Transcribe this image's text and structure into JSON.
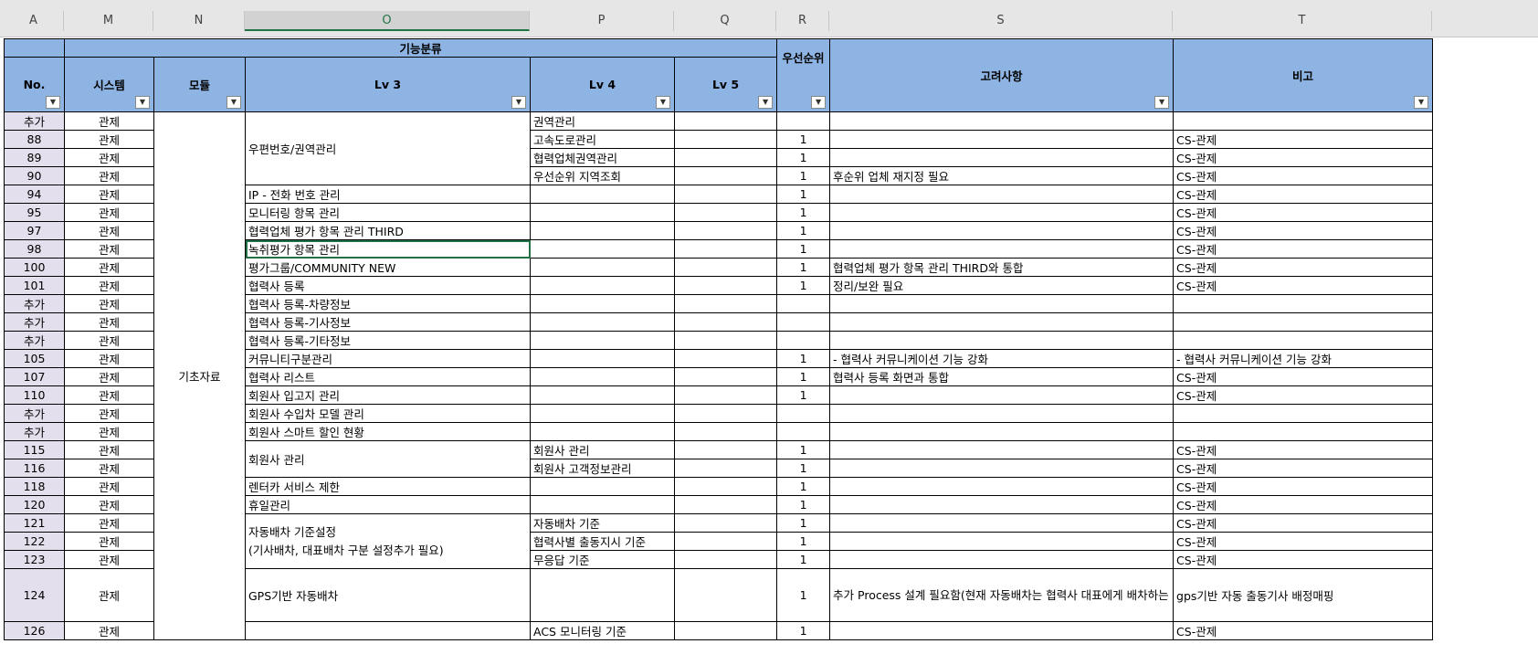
{
  "column_letters": [
    "A",
    "M",
    "N",
    "O",
    "P",
    "Q",
    "R",
    "S",
    "T"
  ],
  "header": {
    "group_label": "기능분류",
    "no": "No.",
    "system": "시스템",
    "module": "모듈",
    "lv3": "Lv 3",
    "lv4": "Lv 4",
    "lv5": "Lv 5",
    "priority": "우선순위",
    "considerations": "고려사항",
    "remarks": "비고"
  },
  "module_name": "기초자료",
  "rows": [
    {
      "no": "추가",
      "sys": "관제",
      "lv4": "권역관리",
      "pr": "",
      "note": "",
      "rem": ""
    },
    {
      "no": "88",
      "sys": "관제",
      "lv4": "고속도로관리",
      "pr": "1",
      "note": "",
      "rem": "CS-관제"
    },
    {
      "no": "89",
      "sys": "관제",
      "lv4": "협력업체권역관리",
      "pr": "1",
      "note": "",
      "rem": "CS-관제"
    },
    {
      "no": "90",
      "sys": "관제",
      "lv4": "우선순위 지역조회",
      "pr": "1",
      "note": "후순위 업체 재지정 필요",
      "rem": "CS-관제"
    },
    {
      "no": "94",
      "sys": "관제",
      "lv3": "IP - 전화 번호 관리",
      "lv4": "",
      "pr": "1",
      "note": "",
      "rem": "CS-관제"
    },
    {
      "no": "95",
      "sys": "관제",
      "lv3": "모니터링 항목 관리",
      "lv4": "",
      "pr": "1",
      "note": "",
      "rem": "CS-관제"
    },
    {
      "no": "97",
      "sys": "관제",
      "lv3": "협력업체 평가 항목 관리 THIRD",
      "lv4": "",
      "pr": "1",
      "note": "",
      "rem": "CS-관제"
    },
    {
      "no": "98",
      "sys": "관제",
      "lv3": "녹취평가 항목 관리",
      "lv4": "",
      "pr": "1",
      "note": "",
      "rem": "CS-관제"
    },
    {
      "no": "100",
      "sys": "관제",
      "lv3": "평가그룹/COMMUNITY NEW",
      "lv4": "",
      "pr": "1",
      "note": "협력업체 평가 항목 관리 THIRD와 통합",
      "rem": "CS-관제"
    },
    {
      "no": "101",
      "sys": "관제",
      "lv3": "협력사 등록",
      "lv4": "",
      "pr": "1",
      "note": "정리/보완 필요",
      "rem": "CS-관제"
    },
    {
      "no": "추가",
      "sys": "관제",
      "lv3": "협력사 등록-차량정보",
      "lv4": "",
      "pr": "",
      "note": "",
      "rem": ""
    },
    {
      "no": "추가",
      "sys": "관제",
      "lv3": "협력사 등록-기사정보",
      "lv4": "",
      "pr": "",
      "note": "",
      "rem": ""
    },
    {
      "no": "추가",
      "sys": "관제",
      "lv3": "협력사 등록-기타정보",
      "lv4": "",
      "pr": "",
      "note": "",
      "rem": ""
    },
    {
      "no": "105",
      "sys": "관제",
      "lv3": "커뮤니티구분관리",
      "lv4": "",
      "pr": "1",
      "note": " - 협력사 커뮤니케이션 기능 강화",
      "rem": " - 협력사 커뮤니케이션 기능 강화"
    },
    {
      "no": "107",
      "sys": "관제",
      "lv3": "협력사 리스트",
      "lv4": "",
      "pr": "1",
      "note": "협력사 등록 화면과 통합",
      "rem": "CS-관제"
    },
    {
      "no": "110",
      "sys": "관제",
      "lv3": "회원사 입고지 관리",
      "lv4": "",
      "pr": "1",
      "note": "",
      "rem": "CS-관제"
    },
    {
      "no": "추가",
      "sys": "관제",
      "lv3": "회원사 수입차 모델 관리",
      "lv4": "",
      "pr": "",
      "note": "",
      "rem": ""
    },
    {
      "no": "추가",
      "sys": "관제",
      "lv3": "회원사 스마트 할인 현황",
      "lv4": "",
      "pr": "",
      "note": "",
      "rem": ""
    },
    {
      "no": "115",
      "sys": "관제",
      "lv4": "회원사 관리",
      "pr": "1",
      "note": "",
      "rem": "CS-관제"
    },
    {
      "no": "116",
      "sys": "관제",
      "lv4": "회원사 고객정보관리",
      "pr": "1",
      "note": "",
      "rem": "CS-관제"
    },
    {
      "no": "118",
      "sys": "관제",
      "lv3": "렌터카 서비스 제한",
      "lv4": "",
      "pr": "1",
      "note": "",
      "rem": "CS-관제"
    },
    {
      "no": "120",
      "sys": "관제",
      "lv3": "휴일관리",
      "lv4": "",
      "pr": "1",
      "note": "",
      "rem": "CS-관제"
    },
    {
      "no": "121",
      "sys": "관제",
      "lv4": "자동배차 기준",
      "pr": "1",
      "note": "",
      "rem": "CS-관제"
    },
    {
      "no": "122",
      "sys": "관제",
      "lv4": "협력사별 출동지시 기준",
      "pr": "1",
      "note": "",
      "rem": "CS-관제"
    },
    {
      "no": "123",
      "sys": "관제",
      "lv4": "무응답 기준",
      "pr": "1",
      "note": "",
      "rem": "CS-관제"
    },
    {
      "no": "124",
      "sys": "관제",
      "lv3": "GPS기반 자동배차",
      "lv4": "",
      "pr": "1",
      "note": "추가 Process 설계 필요함(현재 자동배차는 협력사 대표에게 배차하는 기준임--> GPS기반으로 자동배차도 가능하도록 개선필요)",
      "rem": "gps기반 자동 출동기사 배정매핑"
    },
    {
      "no": "126",
      "sys": "관제",
      "lv4": "ACS 모니터링 기준",
      "pr": "1",
      "note": "",
      "rem": "CS-관제"
    }
  ],
  "merged_lv3": {
    "postal": "우편번호/권역관리",
    "member": "회원사 관리",
    "auto_line1": "자동배차 기준설정",
    "auto_line2": "(기사배차, 대표배차 구분 설정추가 필요)"
  }
}
